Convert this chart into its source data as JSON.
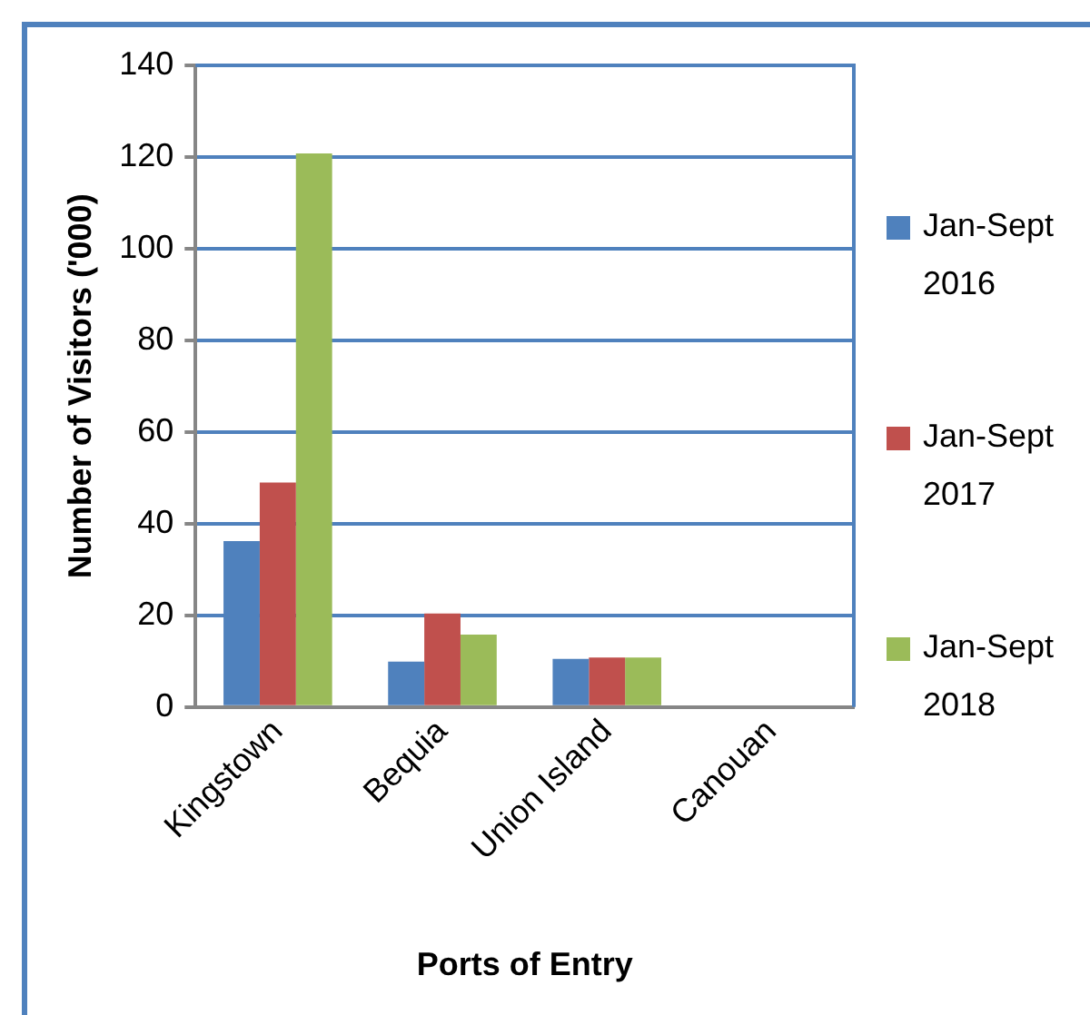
{
  "chart_data": {
    "type": "bar",
    "xlabel": "Ports of Entry",
    "ylabel": "Number of Visitors ('000)",
    "categories": [
      "Kingstown",
      "Bequia",
      "Union Island",
      "Canouan"
    ],
    "series": [
      {
        "name": "Jan-Sept 2016",
        "color": "#4f81bd",
        "values": [
          36.2,
          9.9,
          10.5,
          0
        ]
      },
      {
        "name": "Jan-Sept 2017",
        "color": "#c0504d",
        "values": [
          49,
          20.4,
          10.8,
          0
        ]
      },
      {
        "name": "Jan-Sept 2018",
        "color": "#9bbb59",
        "values": [
          120.8,
          15.8,
          10.8,
          0
        ]
      }
    ],
    "ylim": [
      0,
      140
    ],
    "yticks": [
      0,
      20,
      40,
      60,
      80,
      100,
      120,
      140
    ],
    "grid": "y",
    "legend": "right"
  }
}
